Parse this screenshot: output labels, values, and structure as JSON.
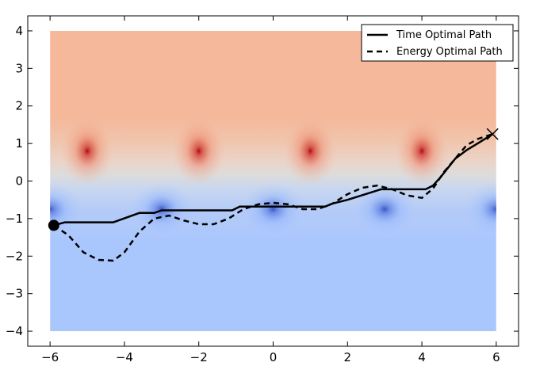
{
  "chart_data": {
    "type": "line",
    "title": "",
    "xlabel": "",
    "ylabel": "",
    "xlim": [
      -6.6,
      6.6
    ],
    "ylim": [
      -4.4,
      4.4
    ],
    "xticks": [
      -6,
      -4,
      -2,
      0,
      2,
      4,
      6
    ],
    "yticks": [
      -4,
      -3,
      -2,
      -1,
      0,
      1,
      2,
      3,
      4
    ],
    "xtick_labels": [
      "−6",
      "−4",
      "−2",
      "0",
      "2",
      "4",
      "6"
    ],
    "ytick_labels": [
      "−4",
      "−3",
      "−2",
      "−1",
      "0",
      "1",
      "2",
      "3",
      "4"
    ],
    "field_extent": {
      "x": [
        -6,
        6
      ],
      "y": [
        -4,
        4
      ]
    },
    "field_colors": {
      "high": "#b40426",
      "upper": "#f5b89a",
      "mid": "#dcdcdc",
      "lower": "#aac7fd",
      "low": "#3b4cc0"
    },
    "hotspots": [
      {
        "x": -5,
        "y": 0.8,
        "kind": "high"
      },
      {
        "x": -2,
        "y": 0.8,
        "kind": "high"
      },
      {
        "x": 1,
        "y": 0.8,
        "kind": "high"
      },
      {
        "x": 4,
        "y": 0.8,
        "kind": "high"
      },
      {
        "x": -6,
        "y": -0.75,
        "kind": "low"
      },
      {
        "x": -3,
        "y": -0.75,
        "kind": "low"
      },
      {
        "x": 0,
        "y": -0.75,
        "kind": "low"
      },
      {
        "x": 3,
        "y": -0.75,
        "kind": "low"
      },
      {
        "x": 6,
        "y": -0.75,
        "kind": "low"
      }
    ],
    "start": {
      "x": -5.9,
      "y": -1.18
    },
    "goal": {
      "x": 5.9,
      "y": 1.25
    },
    "legend": {
      "position": "top-right"
    },
    "series": [
      {
        "name": "Time Optimal Path",
        "style": "solid",
        "x": [
          -5.9,
          -5.6,
          -4.3,
          -3.6,
          -3.2,
          -3.0,
          -1.1,
          -0.9,
          1.4,
          1.6,
          2.0,
          2.9,
          3.9,
          4.1,
          4.3,
          4.5,
          4.9,
          5.2,
          5.5,
          5.9
        ],
        "y": [
          -1.18,
          -1.1,
          -1.1,
          -0.85,
          -0.85,
          -0.78,
          -0.78,
          -0.68,
          -0.68,
          -0.6,
          -0.5,
          -0.22,
          -0.22,
          -0.22,
          -0.12,
          0.1,
          0.6,
          0.82,
          1.0,
          1.25
        ]
      },
      {
        "name": "Energy Optimal Path",
        "style": "dashed",
        "x": [
          -5.9,
          -5.5,
          -5.1,
          -4.7,
          -4.3,
          -4.0,
          -3.6,
          -3.2,
          -2.8,
          -2.4,
          -2.0,
          -1.6,
          -1.2,
          -0.8,
          -0.4,
          0.0,
          0.4,
          0.8,
          1.2,
          1.6,
          2.0,
          2.4,
          2.8,
          3.2,
          3.6,
          4.0,
          4.3,
          4.6,
          4.9,
          5.2,
          5.5,
          5.9
        ],
        "y": [
          -1.18,
          -1.45,
          -1.9,
          -2.1,
          -2.12,
          -1.9,
          -1.35,
          -1.0,
          -0.92,
          -1.05,
          -1.15,
          -1.15,
          -1.0,
          -0.75,
          -0.62,
          -0.58,
          -0.62,
          -0.75,
          -0.75,
          -0.6,
          -0.35,
          -0.18,
          -0.12,
          -0.22,
          -0.38,
          -0.45,
          -0.2,
          0.25,
          0.6,
          0.95,
          1.12,
          1.25
        ]
      }
    ]
  }
}
